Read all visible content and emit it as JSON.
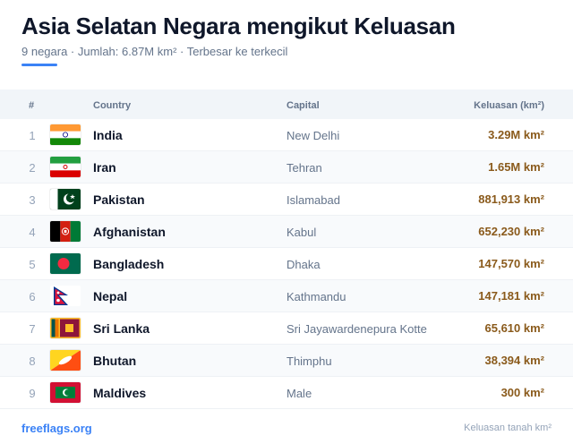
{
  "title": "Asia Selatan Negara mengikut Keluasan",
  "subtitle": "9 negara · Jumlah: 6.87M km² · Terbesar ke terkecil",
  "columns": {
    "num": "#",
    "country": "Country",
    "capital": "Capital",
    "area": "Keluasan (km²)"
  },
  "rows": [
    {
      "rank": "1",
      "country": "India",
      "capital": "New Delhi",
      "area": "3.29M km²",
      "flag": "india-flag"
    },
    {
      "rank": "2",
      "country": "Iran",
      "capital": "Tehran",
      "area": "1.65M km²",
      "flag": "iran-flag"
    },
    {
      "rank": "3",
      "country": "Pakistan",
      "capital": "Islamabad",
      "area": "881,913 km²",
      "flag": "pakistan-flag"
    },
    {
      "rank": "4",
      "country": "Afghanistan",
      "capital": "Kabul",
      "area": "652,230 km²",
      "flag": "afghanistan-flag"
    },
    {
      "rank": "5",
      "country": "Bangladesh",
      "capital": "Dhaka",
      "area": "147,570 km²",
      "flag": "bangladesh-flag"
    },
    {
      "rank": "6",
      "country": "Nepal",
      "capital": "Kathmandu",
      "area": "147,181 km²",
      "flag": "nepal-flag"
    },
    {
      "rank": "7",
      "country": "Sri Lanka",
      "capital": "Sri Jayawardenepura Kotte",
      "area": "65,610 km²",
      "flag": "sri-lanka-flag"
    },
    {
      "rank": "8",
      "country": "Bhutan",
      "capital": "Thimphu",
      "area": "38,394 km²",
      "flag": "bhutan-flag"
    },
    {
      "rank": "9",
      "country": "Maldives",
      "capital": "Male",
      "area": "300 km²",
      "flag": "maldives-flag"
    }
  ],
  "footer": {
    "source": "freeflags.org",
    "note": "Keluasan tanah km²"
  },
  "colors": {
    "accent": "#3b82f6",
    "area_text": "#8a5a1b",
    "header_bg": "#f1f5f9"
  }
}
